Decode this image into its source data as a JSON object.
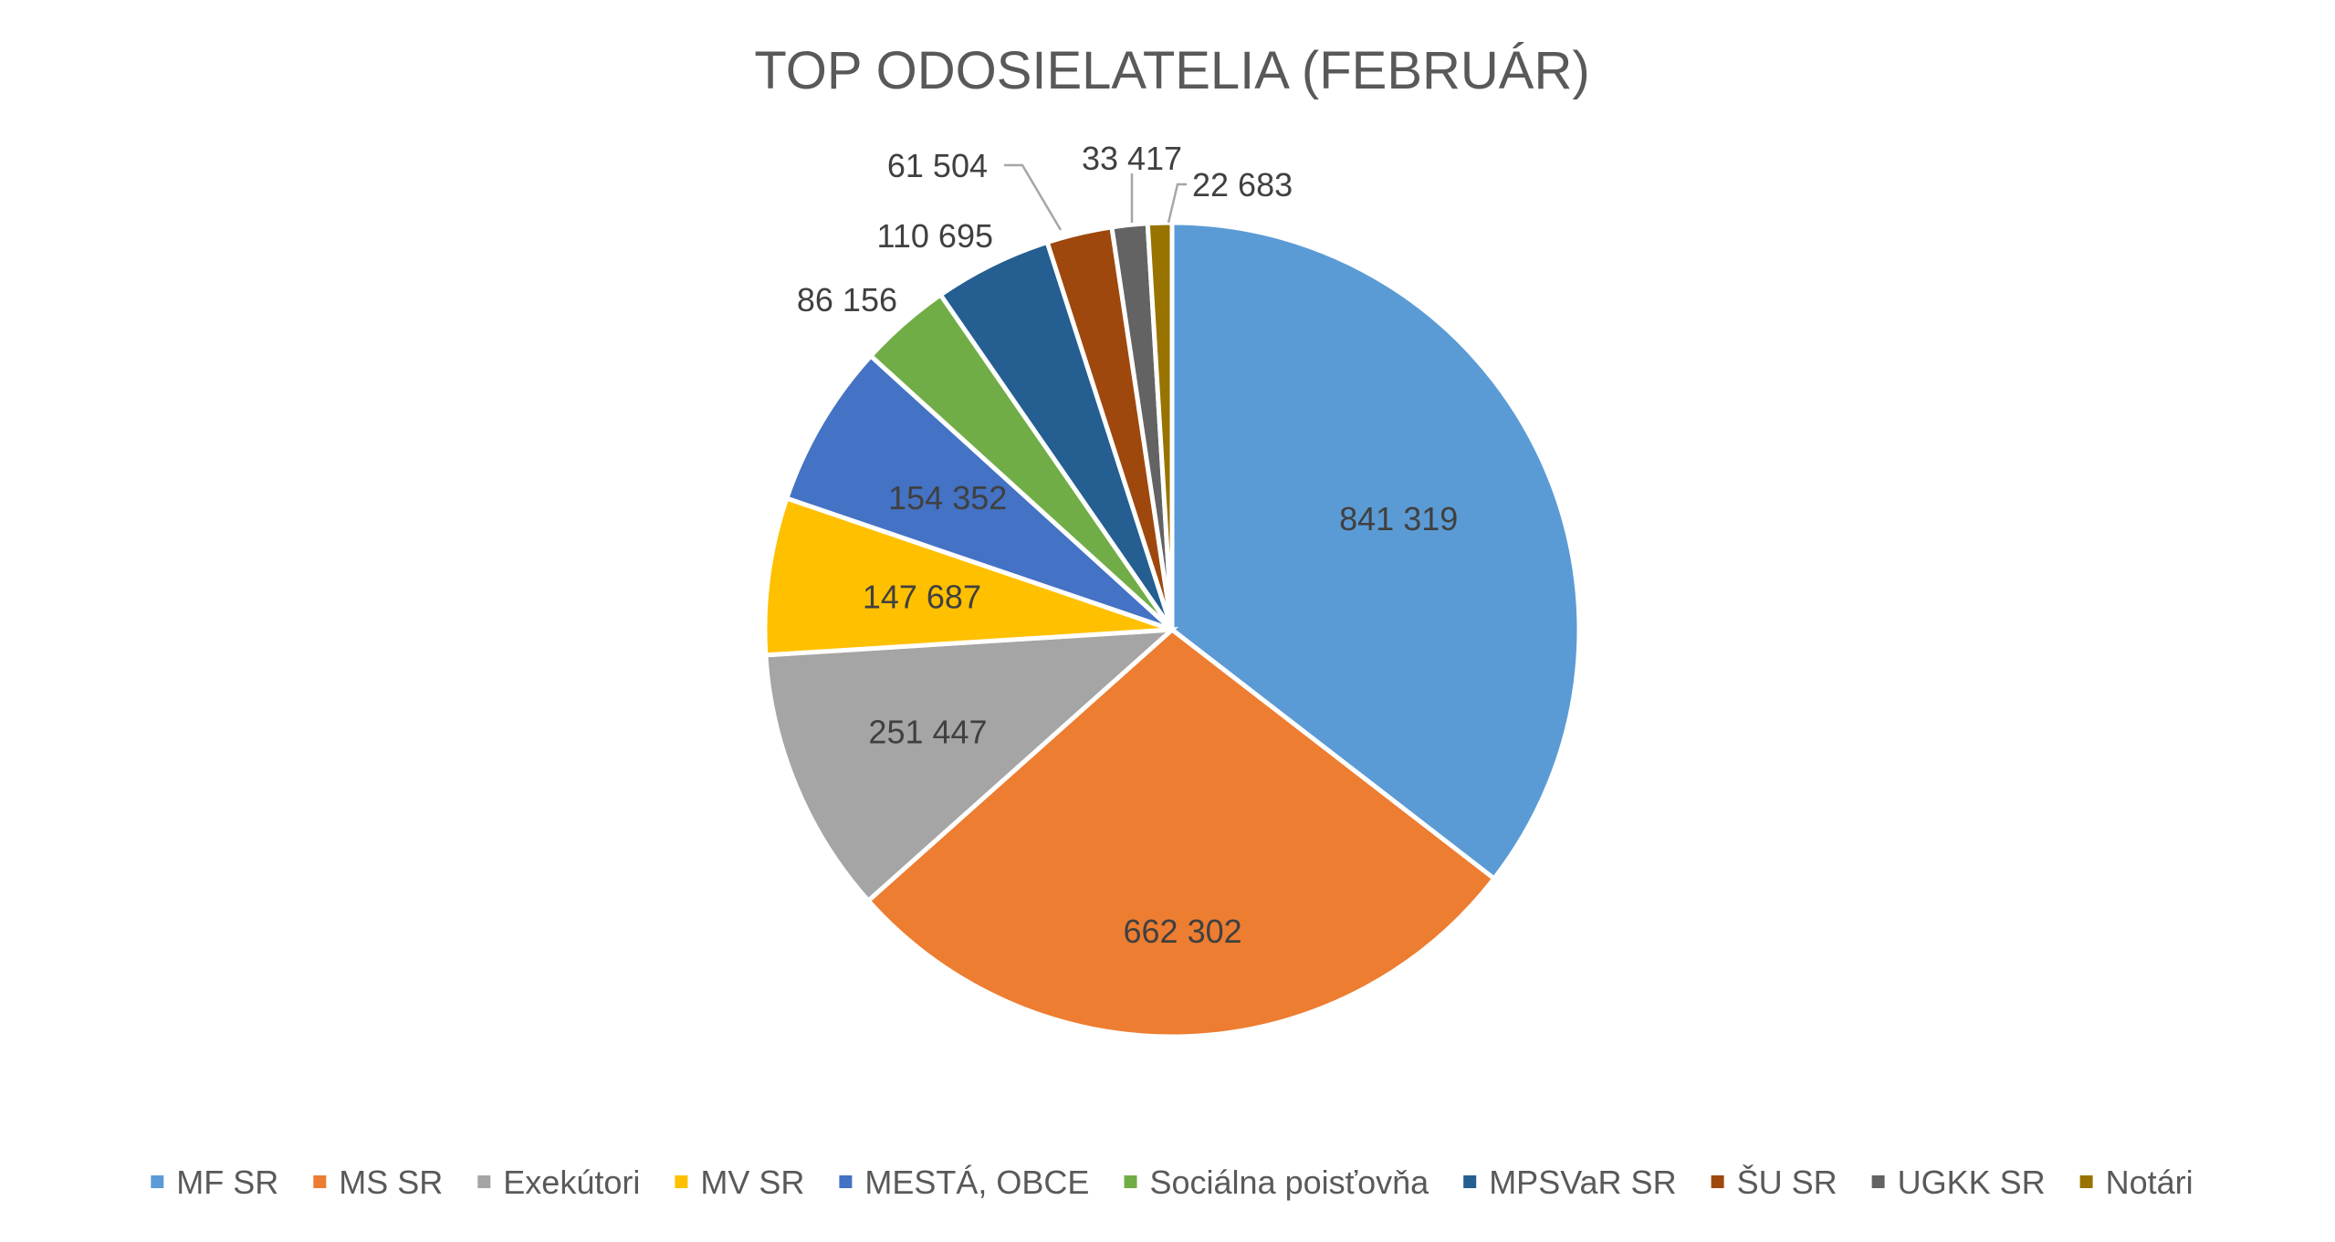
{
  "chart_data": {
    "type": "pie",
    "title": "TOP ODOSIELATELIA (FEBRUÁR)",
    "legend_position": "bottom",
    "categories": [
      "MF SR",
      "MS SR",
      "Exekútori",
      "MV SR",
      "MESTÁ, OBCE",
      "Sociálna poisťovňa",
      "MPSVaR SR",
      "ŠU SR",
      "UGKK SR",
      "Notári"
    ],
    "values": [
      841319,
      662302,
      251447,
      147687,
      154352,
      86156,
      110695,
      61504,
      33417,
      22683
    ],
    "value_labels": [
      "841 319",
      "662 302",
      "251 447",
      "147 687",
      "154 352",
      "86 156",
      "110 695",
      "61 504",
      "33 417",
      "22 683"
    ],
    "colors": [
      "#5B9BD5",
      "#ED7D31",
      "#A5A5A5",
      "#FFC000",
      "#4472C4",
      "#70AD47",
      "#255E91",
      "#9E480E",
      "#636363",
      "#997300"
    ]
  }
}
